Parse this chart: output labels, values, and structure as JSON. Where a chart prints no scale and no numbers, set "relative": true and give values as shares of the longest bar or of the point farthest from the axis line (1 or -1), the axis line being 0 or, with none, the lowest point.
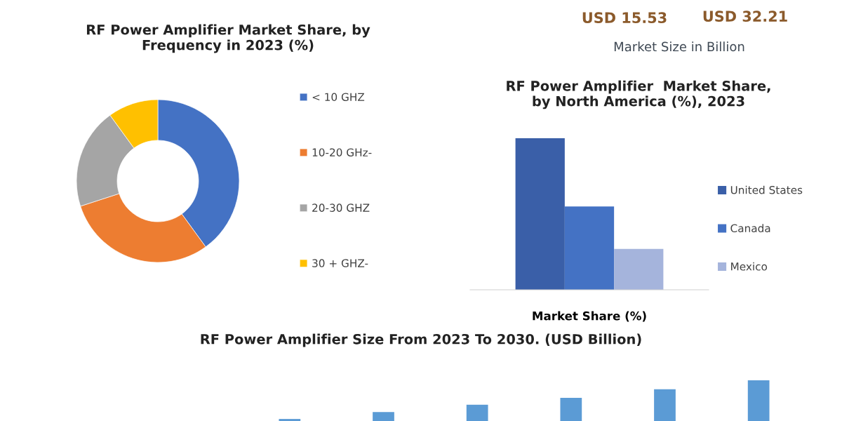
{
  "chart_data": [
    {
      "type": "donut",
      "title": "RF Power Amplifier Market Share, by\nFrequency in 2023 (%)",
      "categories": [
        "< 10 GHZ",
        "10-20 GHz-",
        "20-30 GHZ",
        "30 + GHZ-"
      ],
      "values": [
        40,
        30,
        20,
        10
      ],
      "colors": [
        "#4472c4",
        "#ed7d31",
        "#a5a5a5",
        "#ffc000"
      ],
      "legend": "right"
    },
    {
      "type": "other",
      "annotations": [
        "USD 15.53",
        "USD 32.21",
        "Market Size in Billion"
      ]
    },
    {
      "type": "bar",
      "title": "RF Power Amplifier  Market Share,\nby North America (%), 2023",
      "categories": [
        null
      ],
      "xlabel": "Market Share (%)",
      "relative": true,
      "legend": "right",
      "series": [
        {
          "name": "United States",
          "color": "#3a5fa8",
          "values": [
            1
          ]
        },
        {
          "name": "Canada",
          "color": "#4472c4",
          "values": [
            0.55
          ]
        },
        {
          "name": "Mexico",
          "color": "#a5b4dc",
          "values": [
            0.27
          ]
        }
      ]
    },
    {
      "type": "bar",
      "title": "RF Power Amplifier Size From 2023 To 2030. (USD Billion)",
      "categories": [
        null,
        null,
        null,
        null,
        null,
        null
      ],
      "relative": true,
      "values": [
        0.05,
        0.22,
        0.4,
        0.57,
        0.78,
        1
      ],
      "color": "#5b9bd5"
    }
  ]
}
